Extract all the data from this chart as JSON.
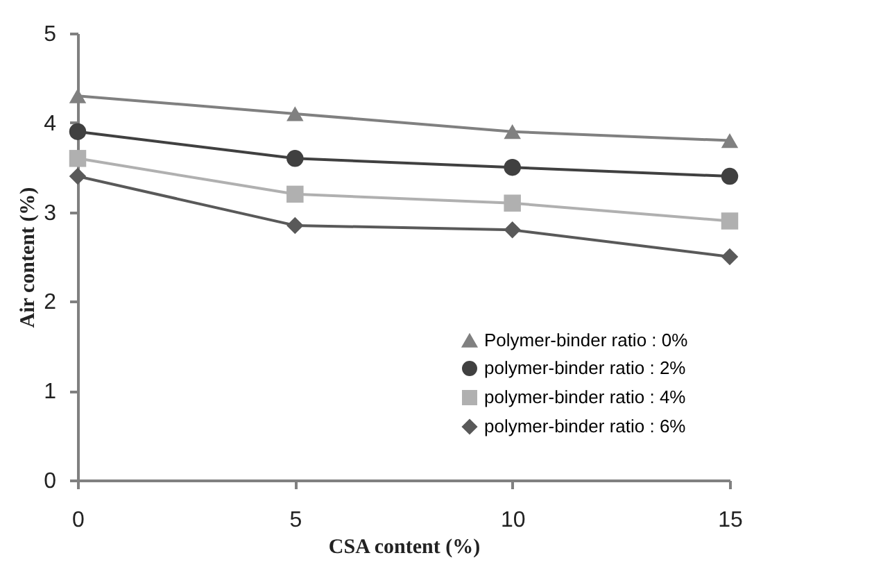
{
  "chart_data": {
    "type": "line",
    "xlabel": "CSA content (%)",
    "ylabel": "Air content (%)",
    "x": [
      0,
      5,
      10,
      15
    ],
    "xlim": [
      0,
      15
    ],
    "xticks": [
      0,
      5,
      10,
      15
    ],
    "ylim": [
      0,
      5
    ],
    "yticks": [
      0,
      1,
      2,
      3,
      4,
      5
    ],
    "grid": false,
    "legend": "bottom right",
    "series": [
      {
        "name": "Polymer-binder ratio : 0%",
        "color": "#808080",
        "marker": "triangle",
        "values": [
          4.3,
          4.1,
          3.9,
          3.8
        ]
      },
      {
        "name": "polymer-binder ratio : 2%",
        "color": "#404040",
        "marker": "circle",
        "values": [
          3.9,
          3.6,
          3.5,
          3.4
        ]
      },
      {
        "name": "polymer-binder ratio : 4%",
        "color": "#b0b0b0",
        "marker": "square",
        "values": [
          3.6,
          3.2,
          3.1,
          2.9
        ]
      },
      {
        "name": "polymer-binder ratio : 6%",
        "color": "#595959",
        "marker": "diamond",
        "values": [
          3.4,
          2.85,
          2.8,
          2.5
        ]
      }
    ]
  }
}
